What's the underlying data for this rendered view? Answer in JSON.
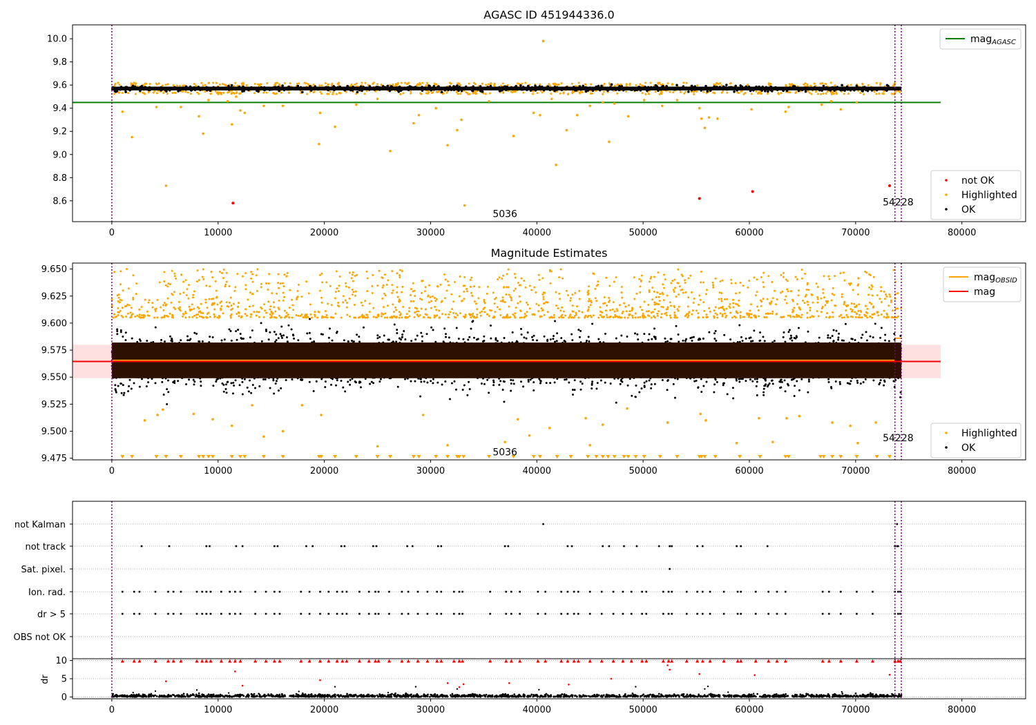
{
  "chart_data": [
    {
      "id": "mag_agasc",
      "type": "scatter",
      "title": "AGASC ID 451944336.0",
      "xlabel": "",
      "ylabel": "",
      "xlim": [
        -3700,
        86000
      ],
      "ylim": [
        8.42,
        10.12
      ],
      "xticks": [
        0,
        10000,
        20000,
        30000,
        40000,
        50000,
        60000,
        70000,
        80000
      ],
      "yticks": [
        8.6,
        8.8,
        9.0,
        9.2,
        9.4,
        9.6,
        9.8,
        10.0
      ],
      "ytick_labels": [
        "8.6",
        "8.8",
        "9.0",
        "9.2",
        "9.4",
        "9.6",
        "9.8",
        "10.0"
      ],
      "legend_upper": {
        "position": "top-right",
        "entries": [
          {
            "label_main": "mag",
            "label_sub": "AGASC",
            "color": "#008000",
            "kind": "line"
          }
        ]
      },
      "legend_lower": {
        "position": "bottom-right",
        "entries": [
          {
            "label": "not OK",
            "color": "#ff0000",
            "kind": "dot"
          },
          {
            "label": "Highlighted",
            "color": "#ffa500",
            "kind": "dot"
          },
          {
            "label": "OK",
            "color": "#000000",
            "kind": "dot"
          }
        ]
      },
      "mag_agasc": 9.45,
      "mag_agasc_xrange": [
        -3700,
        78000
      ],
      "ok_band": {
        "x_start": 0,
        "x_end": 74300,
        "mean": 9.57,
        "half_width": 0.016
      },
      "highlighted_band": {
        "mean": 9.57,
        "half_width": 0.05
      },
      "vlines": [
        0,
        73700,
        74300
      ],
      "annotations": [
        {
          "text": "5036",
          "x": 37000,
          "y": 8.49
        },
        {
          "text": "54228",
          "x": 74000,
          "y": 8.59
        }
      ],
      "highlighted_points": [
        [
          1000,
          9.37
        ],
        [
          1900,
          9.15
        ],
        [
          4200,
          9.41
        ],
        [
          5100,
          8.73
        ],
        [
          6500,
          9.41
        ],
        [
          8200,
          9.33
        ],
        [
          8600,
          9.18
        ],
        [
          9100,
          9.47
        ],
        [
          10900,
          9.46
        ],
        [
          11300,
          9.26
        ],
        [
          11700,
          9.5
        ],
        [
          12100,
          9.38
        ],
        [
          12500,
          9.36
        ],
        [
          14300,
          9.42
        ],
        [
          16100,
          9.42
        ],
        [
          19600,
          9.36
        ],
        [
          19500,
          9.09
        ],
        [
          21000,
          9.24
        ],
        [
          23000,
          9.43
        ],
        [
          25000,
          9.48
        ],
        [
          26200,
          9.03
        ],
        [
          28400,
          9.27
        ],
        [
          28900,
          9.34
        ],
        [
          30500,
          9.4
        ],
        [
          31600,
          9.08
        ],
        [
          32500,
          9.21
        ],
        [
          32900,
          9.3
        ],
        [
          33200,
          8.56
        ],
        [
          35500,
          9.46
        ],
        [
          37800,
          9.16
        ],
        [
          39700,
          9.36
        ],
        [
          40300,
          9.34
        ],
        [
          40600,
          9.98
        ],
        [
          41400,
          9.48
        ],
        [
          41800,
          8.91
        ],
        [
          42800,
          9.21
        ],
        [
          43800,
          9.34
        ],
        [
          45000,
          9.42
        ],
        [
          46200,
          9.45
        ],
        [
          46800,
          9.11
        ],
        [
          47300,
          9.44
        ],
        [
          48600,
          9.33
        ],
        [
          50100,
          9.47
        ],
        [
          51800,
          9.42
        ],
        [
          53200,
          9.47
        ],
        [
          55300,
          9.4
        ],
        [
          55500,
          9.31
        ],
        [
          55800,
          9.23
        ],
        [
          56200,
          9.32
        ],
        [
          57000,
          9.31
        ],
        [
          60200,
          9.39
        ],
        [
          63400,
          9.37
        ],
        [
          63700,
          9.41
        ],
        [
          66800,
          9.43
        ],
        [
          67700,
          9.46
        ],
        [
          68600,
          9.39
        ],
        [
          70100,
          9.45
        ]
      ],
      "not_ok_points": [
        [
          11400,
          8.58
        ],
        [
          55300,
          8.62
        ],
        [
          60300,
          8.68
        ],
        [
          73200,
          8.73
        ]
      ]
    },
    {
      "id": "mag_estimates",
      "type": "scatter",
      "title": "Magnitude Estimates",
      "xlabel": "",
      "ylabel": "",
      "xlim": [
        -3700,
        86000
      ],
      "ylim": [
        9.4735,
        9.6555
      ],
      "xticks": [
        0,
        10000,
        20000,
        30000,
        40000,
        50000,
        60000,
        70000,
        80000
      ],
      "yticks": [
        9.475,
        9.5,
        9.525,
        9.55,
        9.575,
        9.6,
        9.625,
        9.65
      ],
      "ytick_labels": [
        "9.475",
        "9.500",
        "9.525",
        "9.550",
        "9.575",
        "9.600",
        "9.625",
        "9.650"
      ],
      "legend_upper": {
        "position": "top-right",
        "entries": [
          {
            "label_main": "mag",
            "label_sub": "OBSID",
            "color": "#ffa500",
            "kind": "line"
          },
          {
            "label_main": "mag",
            "label_sub": "",
            "color": "#ff0000",
            "kind": "line"
          }
        ]
      },
      "legend_lower": {
        "position": "bottom-right",
        "entries": [
          {
            "label": "Highlighted",
            "color": "#ffa500",
            "kind": "dot"
          },
          {
            "label": "OK",
            "color": "#000000",
            "kind": "dot"
          }
        ]
      },
      "mag": 9.5645,
      "mag_std_band": [
        9.549,
        9.58
      ],
      "mag_xrange": [
        -3700,
        78000
      ],
      "mag_obsid": 9.5655,
      "mag_obsid_last": 9.586,
      "obs_band": [
        9.549,
        9.582
      ],
      "ok_range": [
        9.525,
        9.605
      ],
      "highlighted_range": [
        9.605,
        9.65
      ],
      "vlines": [
        0,
        73700,
        74300
      ],
      "annotations": [
        {
          "text": "5036",
          "x": 37000,
          "y": 9.481
        },
        {
          "text": "54228",
          "x": 74000,
          "y": 9.494
        }
      ],
      "low_outliers": [
        [
          3100,
          9.51
        ],
        [
          4300,
          9.515
        ],
        [
          4800,
          9.52
        ],
        [
          7700,
          9.516
        ],
        [
          9500,
          9.511
        ],
        [
          11300,
          9.505
        ],
        [
          13200,
          9.524
        ],
        [
          14300,
          9.495
        ],
        [
          16100,
          9.5
        ],
        [
          17900,
          9.524
        ],
        [
          19700,
          9.515
        ],
        [
          25000,
          9.486
        ],
        [
          29300,
          9.515
        ],
        [
          31600,
          9.487
        ],
        [
          37000,
          9.49
        ],
        [
          38200,
          9.511
        ],
        [
          39300,
          9.496
        ],
        [
          41200,
          9.503
        ],
        [
          44600,
          9.512
        ],
        [
          45000,
          9.487
        ],
        [
          46200,
          9.506
        ],
        [
          48500,
          9.521
        ],
        [
          52300,
          9.508
        ],
        [
          55400,
          9.516
        ],
        [
          55900,
          9.51
        ],
        [
          58800,
          9.489
        ],
        [
          60900,
          9.512
        ],
        [
          62200,
          9.49
        ],
        [
          63500,
          9.512
        ],
        [
          64700,
          9.514
        ],
        [
          67800,
          9.508
        ],
        [
          69500,
          9.505
        ],
        [
          70200,
          9.489
        ],
        [
          71900,
          9.508
        ]
      ],
      "floor_markers": [
        1000,
        1900,
        4200,
        5100,
        6500,
        8200,
        8600,
        9100,
        9500,
        11300,
        12100,
        12500,
        14300,
        16100,
        19500,
        19700,
        21000,
        23000,
        25000,
        26200,
        28400,
        28900,
        30500,
        31600,
        32500,
        32700,
        33100,
        35500,
        37800,
        39700,
        40300,
        41900,
        43200,
        44800,
        45600,
        46200,
        46700,
        47300,
        48200,
        48600,
        49300,
        50100,
        51600,
        53200,
        55300,
        55500,
        55800,
        56800,
        59100,
        61000,
        63400,
        63700,
        66700,
        67000,
        67800,
        68600,
        70100,
        72000,
        73200
      ]
    },
    {
      "id": "flags",
      "type": "scatter",
      "title": "",
      "xlabel": "",
      "ylabel": "",
      "xlim": [
        -3700,
        86000
      ],
      "categories": [
        "not Kalman",
        "not track",
        "Sat. pixel.",
        "Ion. rad.",
        "dr > 5",
        "OBS not OK"
      ],
      "vlines": [
        0,
        73700,
        74300
      ],
      "flag_points": {
        "not Kalman": [
          40600,
          73900
        ],
        "not track": [
          2800,
          5400,
          8900,
          9200,
          11700,
          12300,
          15300,
          15600,
          18300,
          18900,
          21600,
          21900,
          24600,
          24900,
          27800,
          28300,
          30700,
          31000,
          37000,
          37300,
          42900,
          43300,
          46200,
          46800,
          48200,
          49400,
          51500,
          52500,
          52700,
          55100,
          55600,
          58800,
          59200,
          61700,
          73700,
          73900,
          74000
        ],
        "Sat. pixel.": [
          52500
        ],
        "Ion. rad.": [
          1000,
          2100,
          2600,
          4100,
          5300,
          5800,
          6500,
          8000,
          8500,
          8900,
          9300,
          10300,
          11100,
          11600,
          12100,
          13500,
          14500,
          15300,
          15800,
          17800,
          18600,
          19600,
          20400,
          21200,
          21700,
          22100,
          23300,
          24200,
          24800,
          25100,
          26100,
          27300,
          27900,
          28800,
          29700,
          30600,
          31000,
          32200,
          32700,
          33000,
          35600,
          37100,
          37600,
          38400,
          40100,
          40800,
          42300,
          42900,
          43500,
          43900,
          45000,
          46100,
          47200,
          48100,
          48900,
          49900,
          50300,
          51900,
          52400,
          52700,
          54100,
          55100,
          55600,
          56300,
          57600,
          58900,
          59200,
          60600,
          61800,
          62600,
          63400,
          66900,
          67500,
          68600,
          70100,
          71600,
          73700,
          74000,
          74200
        ],
        "dr > 5": [
          1000,
          2100,
          2600,
          4100,
          5300,
          5800,
          6500,
          8000,
          8500,
          8900,
          9300,
          10300,
          11100,
          11600,
          12100,
          13500,
          14500,
          15300,
          15800,
          17800,
          18600,
          19600,
          20400,
          21200,
          21700,
          22100,
          23300,
          24200,
          24800,
          25100,
          26100,
          27300,
          27900,
          28800,
          29700,
          30600,
          31000,
          32200,
          32700,
          33000,
          35600,
          37100,
          37600,
          38400,
          40100,
          40800,
          42300,
          42900,
          43500,
          43900,
          45000,
          46100,
          47200,
          48100,
          48900,
          49900,
          50300,
          51900,
          52400,
          52700,
          54100,
          55100,
          55600,
          56300,
          57600,
          58900,
          59200,
          60600,
          61800,
          62600,
          63400,
          66900,
          67500,
          68600,
          70100,
          71600,
          73700,
          74000,
          74200
        ],
        "OBS not OK": []
      }
    },
    {
      "id": "dr",
      "type": "scatter",
      "title": "",
      "xlabel": "",
      "ylabel": "dr",
      "xlim": [
        -3700,
        86000
      ],
      "ylim": [
        -0.5,
        10.5
      ],
      "xticks": [
        0,
        10000,
        20000,
        30000,
        40000,
        50000,
        60000,
        70000,
        80000
      ],
      "yticks": [
        0,
        5,
        10
      ],
      "ytick_labels": [
        "0",
        "5",
        "10"
      ],
      "vlines": [
        0,
        73700,
        74300
      ],
      "threshold": 5,
      "high_markers": [
        1000,
        2100,
        2600,
        4100,
        5300,
        5800,
        6500,
        8000,
        8500,
        8900,
        9300,
        10300,
        11100,
        11600,
        12100,
        13500,
        14500,
        15300,
        15800,
        17800,
        18600,
        19600,
        20400,
        21200,
        21700,
        22100,
        23300,
        24200,
        24800,
        25100,
        26100,
        27300,
        27900,
        28800,
        29700,
        30600,
        31000,
        32200,
        32700,
        33000,
        35600,
        37100,
        37600,
        38400,
        40100,
        40800,
        42300,
        42900,
        43500,
        43900,
        45000,
        46100,
        47200,
        48100,
        48900,
        49900,
        50300,
        51900,
        52400,
        52700,
        54100,
        55100,
        55600,
        56300,
        57600,
        58900,
        59200,
        60600,
        61800,
        62600,
        63400,
        66900,
        67500,
        68600,
        70100,
        71600,
        73700,
        74000,
        74200
      ],
      "mid_red_points": [
        [
          5100,
          4.3
        ],
        [
          11600,
          7.0
        ],
        [
          12300,
          3.1
        ],
        [
          19600,
          4.6
        ],
        [
          31600,
          3.8
        ],
        [
          32700,
          2.7
        ],
        [
          33100,
          3.5
        ],
        [
          37400,
          3.8
        ],
        [
          43000,
          3.4
        ],
        [
          47000,
          5.0
        ],
        [
          52300,
          8.7
        ],
        [
          52500,
          7.5
        ],
        [
          55300,
          6.3
        ],
        [
          60500,
          6.0
        ],
        [
          73200,
          6.1
        ]
      ],
      "black_outliers": [
        [
          2000,
          1.2
        ],
        [
          4100,
          1.6
        ],
        [
          8000,
          1.9
        ],
        [
          11000,
          1.1
        ],
        [
          17600,
          1.5
        ],
        [
          21000,
          2.8
        ],
        [
          26000,
          1.2
        ],
        [
          28600,
          2.8
        ],
        [
          32500,
          2.2
        ],
        [
          40200,
          2.0
        ],
        [
          49300,
          2.8
        ],
        [
          55800,
          2.2
        ],
        [
          56100,
          2.9
        ],
        [
          58000,
          1.3
        ],
        [
          60400,
          0.9
        ],
        [
          68700,
          1.4
        ],
        [
          71400,
          1.1
        ]
      ]
    }
  ]
}
